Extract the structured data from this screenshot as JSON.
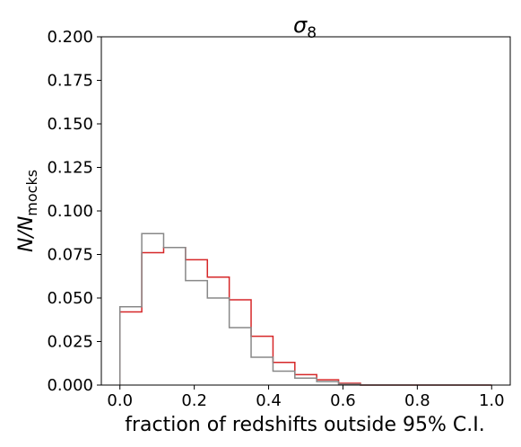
{
  "chart_data": {
    "type": "step",
    "title_symbol": "σ",
    "title_subscript": "8",
    "xlabel": "fraction of redshifts outside 95% C.I.",
    "ylabel_main": "N/N",
    "ylabel_subscript": "mocks",
    "xlim": [
      -0.05,
      1.05
    ],
    "ylim": [
      0.0,
      0.2
    ],
    "xticks": [
      0.0,
      0.2,
      0.4,
      0.6,
      0.8,
      1.0
    ],
    "xtick_labels": [
      "0.0",
      "0.2",
      "0.4",
      "0.6",
      "0.8",
      "1.0"
    ],
    "yticks": [
      0.0,
      0.025,
      0.05,
      0.075,
      0.1,
      0.125,
      0.15,
      0.175,
      0.2
    ],
    "ytick_labels": [
      "0.000",
      "0.025",
      "0.050",
      "0.075",
      "0.100",
      "0.125",
      "0.150",
      "0.175",
      "0.200"
    ],
    "bin_edges": [
      0.0,
      0.0588,
      0.1176,
      0.1765,
      0.2353,
      0.2941,
      0.3529,
      0.4118,
      0.4706,
      0.5294,
      0.5882,
      0.6471,
      0.7059,
      0.7647,
      0.8235,
      0.8824,
      0.9412,
      1.0
    ],
    "series": [
      {
        "color": "#d62728",
        "values": [
          0.042,
          0.076,
          0.079,
          0.072,
          0.062,
          0.049,
          0.028,
          0.013,
          0.006,
          0.003,
          0.001,
          0.0,
          0.0,
          0.0,
          0.0,
          0.0,
          0.0
        ]
      },
      {
        "color": "#888888",
        "values": [
          0.045,
          0.087,
          0.079,
          0.06,
          0.05,
          0.033,
          0.016,
          0.008,
          0.004,
          0.002,
          0.0005,
          0.0,
          0.0,
          0.0,
          0.0,
          0.0,
          0.0
        ]
      }
    ]
  }
}
